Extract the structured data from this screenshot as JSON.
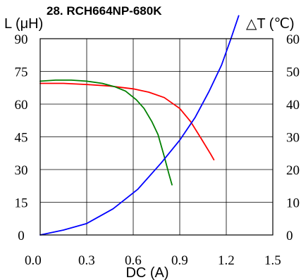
{
  "chart_data": {
    "type": "line",
    "title": "28. RCH664NP-680K",
    "xlabel": "DC (A)",
    "ylabel_left": "L (μH)",
    "ylabel_right": "△T (℃)",
    "xlim": [
      0,
      1.5
    ],
    "ylim_left": [
      0,
      90
    ],
    "ylim_right": [
      0,
      60
    ],
    "x_ticks": [
      "0.0",
      "0.3",
      "0.6",
      "0.9",
      "1.2",
      "1.5"
    ],
    "y_ticks_left": [
      "0",
      "15",
      "30",
      "45",
      "60",
      "75",
      "90"
    ],
    "y_ticks_right": [
      "0",
      "10",
      "20",
      "30",
      "40",
      "50",
      "60"
    ],
    "grid": true,
    "series": [
      {
        "color": "#ff0000",
        "axis": "left",
        "x": [
          0.0,
          0.15,
          0.3,
          0.45,
          0.6,
          0.7,
          0.8,
          0.9,
          0.97,
          1.04,
          1.1,
          1.12
        ],
        "y": [
          69.5,
          69.5,
          69,
          68.3,
          67,
          65.5,
          63,
          58,
          52,
          44,
          37,
          34.5
        ]
      },
      {
        "color": "#008000",
        "axis": "left",
        "x": [
          0.0,
          0.1,
          0.2,
          0.3,
          0.4,
          0.48,
          0.55,
          0.62,
          0.67,
          0.72,
          0.76,
          0.8,
          0.83,
          0.85
        ],
        "y": [
          70.5,
          71,
          71,
          70.5,
          69.5,
          68,
          66,
          62,
          58,
          52,
          46,
          36,
          28,
          23
        ]
      },
      {
        "color": "#0000ff",
        "axis": "right",
        "x": [
          0.0,
          0.15,
          0.3,
          0.47,
          0.63,
          0.78,
          0.9,
          1.0,
          1.09,
          1.17,
          1.23,
          1.28
        ],
        "y": [
          0,
          1.5,
          3.5,
          8,
          14,
          22,
          29,
          36,
          44,
          52,
          60,
          67
        ]
      }
    ]
  }
}
